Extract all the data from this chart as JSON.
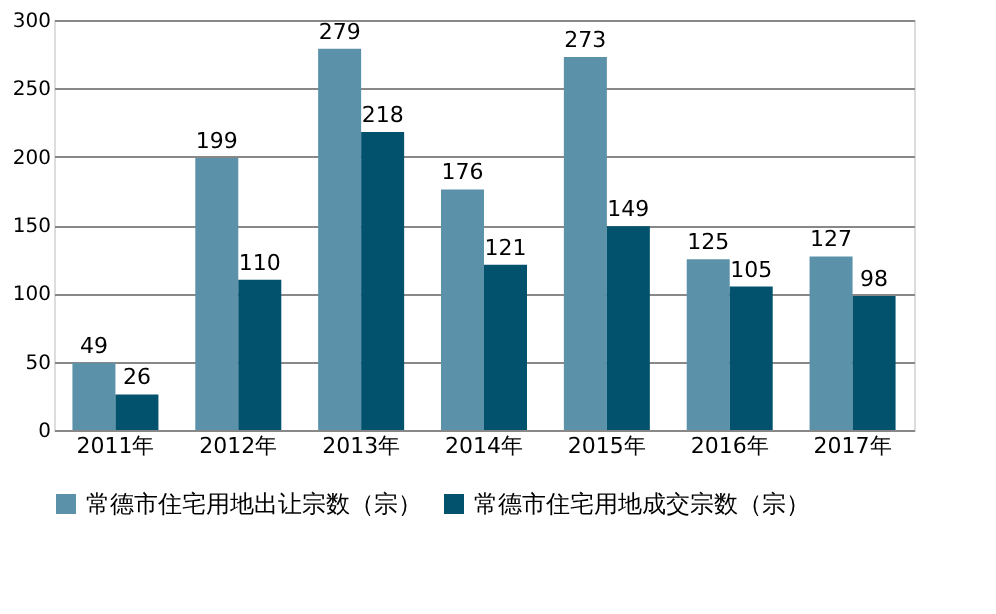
{
  "chart_data": {
    "type": "bar",
    "categories": [
      "2011年",
      "2012年",
      "2013年",
      "2014年",
      "2015年",
      "2016年",
      "2017年"
    ],
    "series": [
      {
        "name": "常德市住宅用地出让宗数（宗）",
        "color": "#5b91a9",
        "values": [
          49,
          199,
          279,
          176,
          273,
          125,
          127
        ]
      },
      {
        "name": "常德市住宅用地成交宗数（宗）",
        "color": "#02526e",
        "values": [
          26,
          110,
          218,
          121,
          149,
          105,
          98
        ]
      }
    ],
    "ylim": [
      0,
      300
    ],
    "yticks": [
      0,
      50,
      100,
      150,
      200,
      250,
      300
    ],
    "grid": "y",
    "legend": "bottom",
    "data_labels": true
  }
}
